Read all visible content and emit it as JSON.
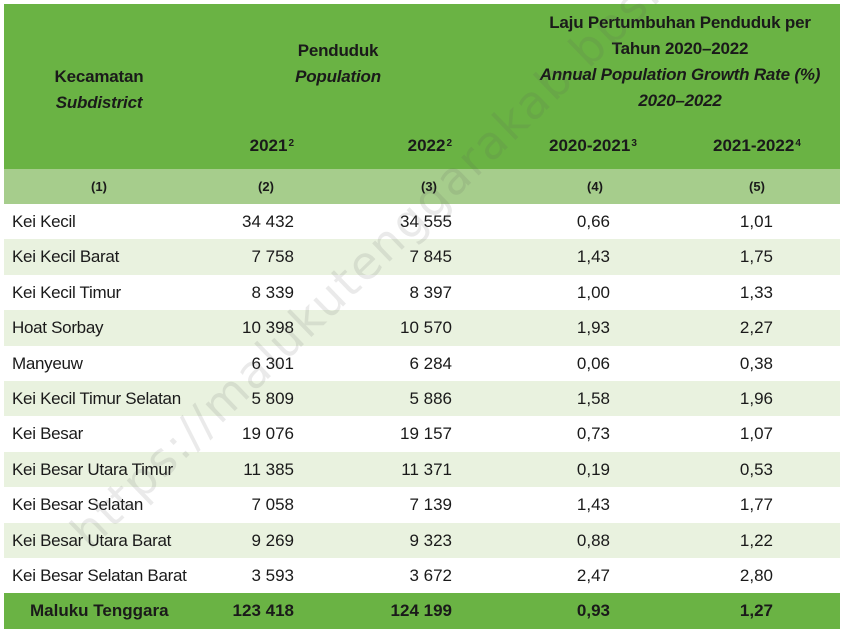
{
  "header": {
    "kecamatan": "Kecamatan",
    "subdistrict": "Subdistrict",
    "penduduk": "Penduduk",
    "population": "Population",
    "rate_line1": "Laju Pertumbuhan Penduduk per",
    "rate_line2": "Tahun 2020–2022",
    "rate_line3": "Annual Population Growth Rate (%)",
    "rate_line4": "2020–2022",
    "y2021": "2021",
    "y2021_note": "2",
    "y2022": "2022",
    "y2022_note": "2",
    "r2021": "2020-2021",
    "r2021_note": "3",
    "r2022": "2021-2022",
    "r2022_note": "4"
  },
  "col_numbers": [
    "(1)",
    "(2)",
    "(3)",
    "(4)",
    "(5)"
  ],
  "rows": [
    {
      "name": "Kei Kecil",
      "p2021": "34 432",
      "p2022": "34 555",
      "r1": "0,66",
      "r2": "1,01"
    },
    {
      "name": "Kei Kecil Barat",
      "p2021": "7 758",
      "p2022": "7 845",
      "r1": "1,43",
      "r2": "1,75"
    },
    {
      "name": "Kei Kecil Timur",
      "p2021": "8 339",
      "p2022": "8 397",
      "r1": "1,00",
      "r2": "1,33"
    },
    {
      "name": "Hoat Sorbay",
      "p2021": "10 398",
      "p2022": "10 570",
      "r1": "1,93",
      "r2": "2,27"
    },
    {
      "name": "Manyeuw",
      "p2021": "6 301",
      "p2022": "6 284",
      "r1": "0,06",
      "r2": "0,38"
    },
    {
      "name": "Kei Kecil Timur Selatan",
      "p2021": "5 809",
      "p2022": "5 886",
      "r1": "1,58",
      "r2": "1,96"
    },
    {
      "name": "Kei Besar",
      "p2021": "19 076",
      "p2022": "19 157",
      "r1": "0,73",
      "r2": "1,07"
    },
    {
      "name": "Kei Besar Utara Timur",
      "p2021": "11 385",
      "p2022": "11 371",
      "r1": "0,19",
      "r2": "0,53"
    },
    {
      "name": "Kei Besar Selatan",
      "p2021": "7 058",
      "p2022": "7 139",
      "r1": "1,43",
      "r2": "1,77"
    },
    {
      "name": "Kei Besar Utara Barat",
      "p2021": "9 269",
      "p2022": "9 323",
      "r1": "0,88",
      "r2": "1,22"
    },
    {
      "name": "Kei Besar Selatan Barat",
      "p2021": "3 593",
      "p2022": "3 672",
      "r1": "2,47",
      "r2": "2,80"
    }
  ],
  "total": {
    "name": "Maluku Tenggara",
    "p2021": "123 418",
    "p2022": "124 199",
    "r1": "0,93",
    "r2": "1,27"
  },
  "watermark": "https://malukutenggarakab.bps.go.id",
  "colors": {
    "header_green": "#6ab344",
    "numrow_green": "#a6cd8c",
    "stripe": "#e9f2df"
  }
}
